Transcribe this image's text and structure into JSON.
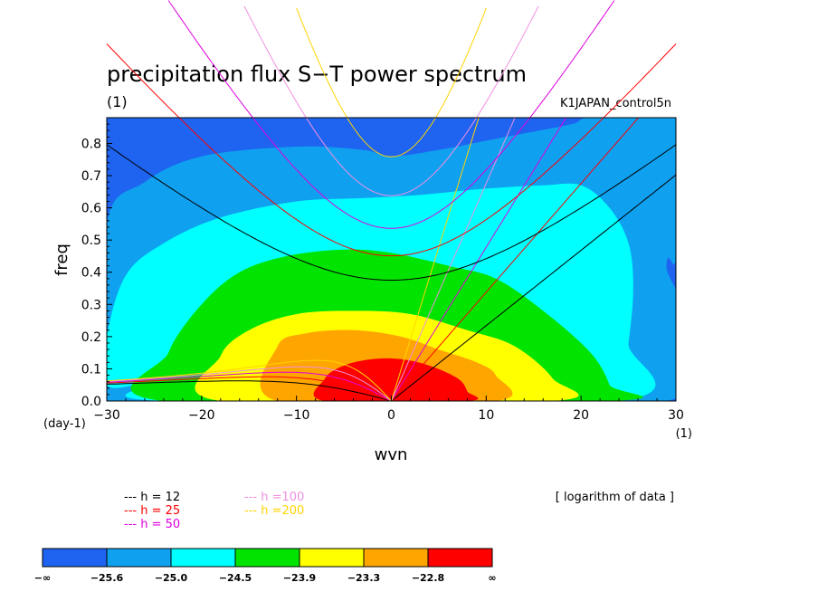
{
  "chart_data": {
    "type": "heatmap",
    "title": "precipitation flux S−T power spectrum",
    "subtitle_left": "(1)",
    "subtitle_right": "K1JAPAN_control5n",
    "xlabel": "wvn",
    "ylabel": "freq",
    "x_unit": "(1)",
    "y_unit": "(day-1)",
    "note": "[ logarithm of data ]",
    "xlim": [
      -30,
      30
    ],
    "ylim": [
      0,
      0.88
    ],
    "x_ticks": [
      -30,
      -20,
      -10,
      0,
      10,
      20,
      30
    ],
    "y_ticks": [
      0.0,
      0.1,
      0.2,
      0.3,
      0.4,
      0.5,
      0.6,
      0.7,
      0.8
    ],
    "x_tick_labels": [
      "−30",
      "−20",
      "−10",
      "0",
      "10",
      "20",
      "30"
    ],
    "y_tick_labels": [
      "0.0",
      "0.1",
      "0.2",
      "0.3",
      "0.4",
      "0.5",
      "0.6",
      "0.7",
      "0.8"
    ],
    "contour_levels": [
      -25.6,
      -25.0,
      -24.5,
      -23.9,
      -23.3,
      -22.8
    ],
    "colorbar_labels": [
      "−∞",
      "−25.6",
      "−25.0",
      "−24.5",
      "−23.9",
      "−23.3",
      "−22.8",
      "∞"
    ],
    "colors": [
      "#1e64f0",
      "#0fa0f0",
      "#00ffff",
      "#00e400",
      "#ffff00",
      "#ffa500",
      "#ff0000"
    ],
    "filled_regions": [
      {
        "level_index": 1,
        "points": [
          [
            -30,
            0
          ],
          [
            -30,
            0.55
          ],
          [
            -26,
            0.68
          ],
          [
            -20,
            0.76
          ],
          [
            -10,
            0.79
          ],
          [
            -3,
            0.78
          ],
          [
            0,
            0.76
          ],
          [
            5,
            0.78
          ],
          [
            12,
            0.82
          ],
          [
            19,
            0.86
          ],
          [
            21,
            0.88
          ],
          [
            30,
            0.88
          ],
          [
            30,
            0.45
          ],
          [
            29,
            0.42
          ],
          [
            29,
            0
          ]
        ]
      },
      {
        "level_index": 2,
        "points": [
          [
            -30,
            0.05
          ],
          [
            -30,
            0.2
          ],
          [
            -28,
            0.39
          ],
          [
            -24,
            0.49
          ],
          [
            -18,
            0.57
          ],
          [
            -10,
            0.62
          ],
          [
            -3,
            0.63
          ],
          [
            3,
            0.64
          ],
          [
            10,
            0.66
          ],
          [
            16,
            0.67
          ],
          [
            20,
            0.67
          ],
          [
            23,
            0.6
          ],
          [
            25,
            0.49
          ],
          [
            25.5,
            0.35
          ],
          [
            25,
            0.18
          ],
          [
            24,
            0
          ],
          [
            -24,
            0
          ],
          [
            -26,
            0.05
          ]
        ]
      },
      {
        "level_index": 3,
        "points": [
          [
            -24,
            0
          ],
          [
            -23.5,
            0.15
          ],
          [
            -20,
            0.3
          ],
          [
            -16,
            0.4
          ],
          [
            -11,
            0.45
          ],
          [
            -5,
            0.47
          ],
          [
            0,
            0.46
          ],
          [
            6,
            0.42
          ],
          [
            11,
            0.38
          ],
          [
            16,
            0.28
          ],
          [
            21,
            0.15
          ],
          [
            23,
            0.05
          ],
          [
            23,
            0
          ]
        ]
      },
      {
        "level_index": 4,
        "points": [
          [
            -18,
            0
          ],
          [
            -18,
            0.14
          ],
          [
            -15,
            0.22
          ],
          [
            -10,
            0.27
          ],
          [
            -4,
            0.28
          ],
          [
            2,
            0.27
          ],
          [
            8,
            0.22
          ],
          [
            13,
            0.17
          ],
          [
            17,
            0.07
          ],
          [
            17,
            0
          ]
        ]
      },
      {
        "level_index": 5,
        "points": [
          [
            -12,
            0
          ],
          [
            -12,
            0.17
          ],
          [
            -9,
            0.21
          ],
          [
            -4,
            0.22
          ],
          [
            1,
            0.2
          ],
          [
            5,
            0.16
          ],
          [
            9,
            0.12
          ],
          [
            11,
            0.08
          ],
          [
            11,
            0
          ]
        ]
      },
      {
        "level_index": 6,
        "points": [
          [
            -7,
            0
          ],
          [
            -7,
            0.07
          ],
          [
            -5,
            0.11
          ],
          [
            -2,
            0.13
          ],
          [
            1,
            0.13
          ],
          [
            4,
            0.11
          ],
          [
            7,
            0.07
          ],
          [
            8,
            0.03
          ],
          [
            8,
            0
          ]
        ]
      }
    ],
    "dispersion_series": [
      {
        "name": "h = 12",
        "label": "---  h = 12",
        "h": 12,
        "color": "#000000"
      },
      {
        "name": "h = 25",
        "label": "---  h = 25",
        "h": 25,
        "color": "#ff0000"
      },
      {
        "name": "h = 50",
        "label": "---  h = 50",
        "h": 50,
        "color": "#e000e0"
      },
      {
        "name": "h =100",
        "label": "---  h =100",
        "h": 100,
        "color": "#f090e0"
      },
      {
        "name": "h =200",
        "label": "---  h =200",
        "h": 200,
        "color": "#ffd400"
      }
    ]
  }
}
